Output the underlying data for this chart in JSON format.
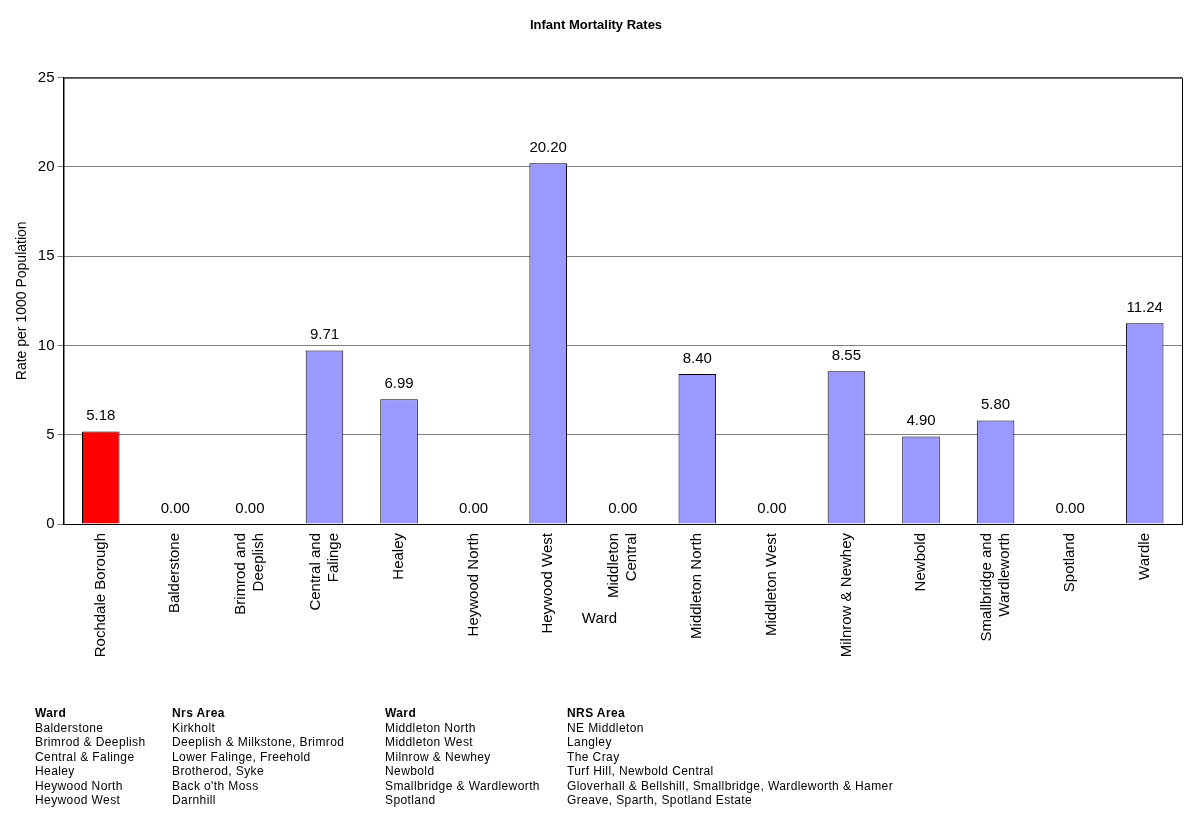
{
  "chart_data": {
    "type": "bar",
    "title": "Infant Mortality Rates",
    "xlabel": "Ward",
    "ylabel": "Rate per 1000 Population",
    "categories": [
      "Rochdale Borough",
      "Balderstone",
      "Brimrod and Deeplish",
      "Central and Falinge",
      "Healey",
      "Heywood North",
      "Heywood West",
      "Middleton Central",
      "Middleton North",
      "Middleton West",
      "Milnrow & Newhey",
      "Newbold",
      "Smallbridge and Wardleworth",
      "Spotland",
      "Wardle"
    ],
    "values": [
      5.18,
      0,
      0,
      9.71,
      6.99,
      0,
      20.2,
      0,
      8.4,
      0,
      8.55,
      4.9,
      5.8,
      0,
      11.24
    ],
    "value_labels": [
      "5.18",
      "0.00",
      "0.00",
      "9.71",
      "6.99",
      "0.00",
      "20.20",
      "0.00",
      "8.40",
      "0.00",
      "8.55",
      "4.90",
      "5.80",
      "0.00",
      "11.24"
    ],
    "colors": [
      "#ff0000",
      "#9999ff",
      "#9999ff",
      "#9999ff",
      "#9999ff",
      "#9999ff",
      "#9999ff",
      "#9999ff",
      "#9999ff",
      "#9999ff",
      "#9999ff",
      "#9999ff",
      "#9999ff",
      "#9999ff",
      "#9999ff"
    ],
    "ylim": [
      0,
      25
    ],
    "yticks": [
      0,
      5,
      10,
      15,
      20,
      25
    ],
    "grid": "y",
    "legend": false,
    "annotations": [
      "Ward",
      "Balderstone",
      "Brimrod & Deeplish",
      "Central & Falinge",
      "Healey",
      "Heywood North",
      "Heywood West",
      "Nrs Area",
      "Kirkholt",
      "Deeplish & Milkstone, Brimrod",
      "Lower Falinge, Freehold",
      "Brotherod, Syke",
      "Back o'th Moss",
      "Darnhill",
      "Ward",
      "Middleton North",
      "Middleton West",
      "Milnrow & Newhey",
      "Newbold",
      "Smallbridge & Wardleworth",
      "Spotland",
      "NRS Area",
      "NE Middleton",
      "Langley",
      "The Cray",
      "Turf Hill, Newbold Central",
      "Gloverhall & Bellshill, Smallbridge, Wardleworth & Hamer",
      "Greave, Sparth, Spotland Estate"
    ]
  }
}
